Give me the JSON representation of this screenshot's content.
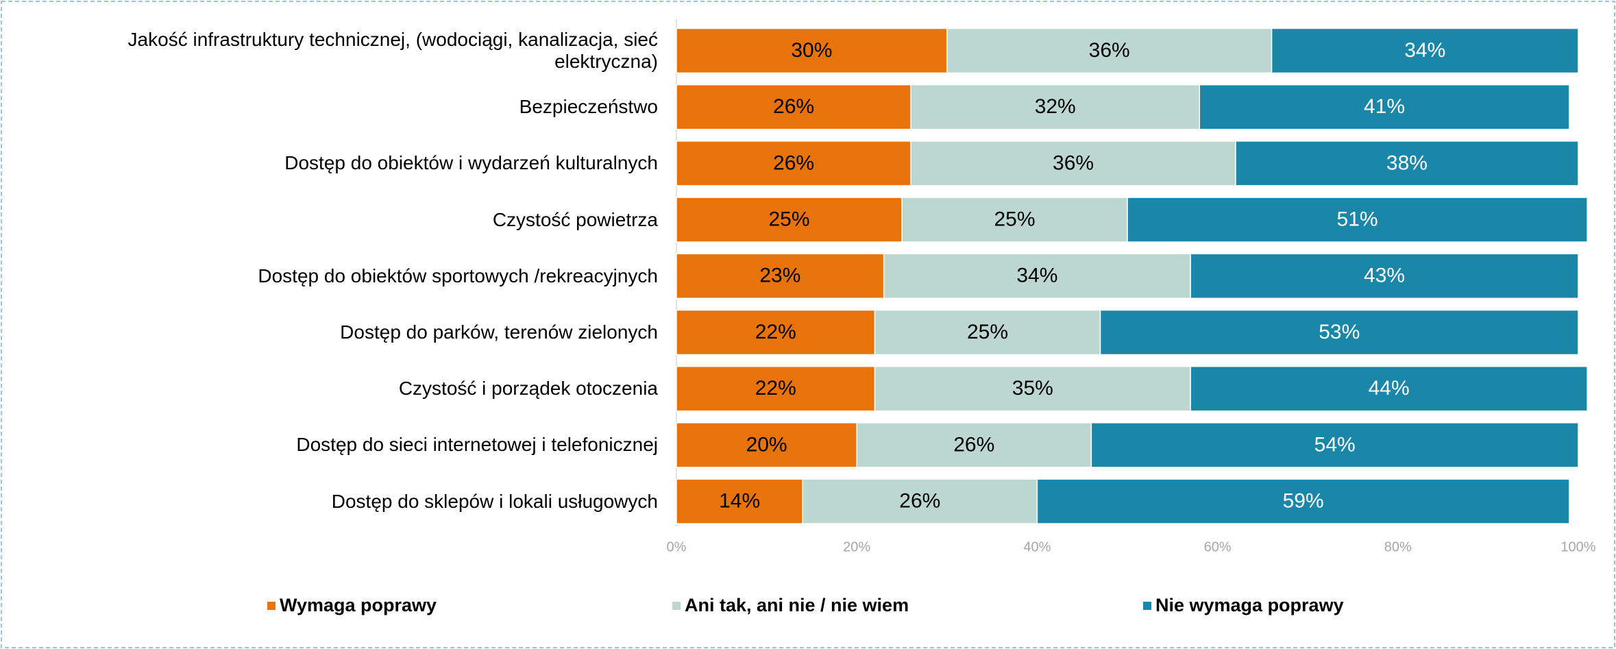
{
  "chart_data": {
    "type": "stacked_barh",
    "categories": [
      "Jakość infrastruktury technicznej, (wodociągi, kanalizacja, sieć elektryczna)",
      "Bezpieczeństwo",
      "Dostęp do obiektów i wydarzeń kulturalnych",
      "Czystość powietrza",
      "Dostęp do obiektów sportowych /rekreacyjnych",
      "Dostęp do parków, terenów zielonych",
      "Czystość i porządek otoczenia",
      "Dostęp do sieci internetowej i telefonicznej",
      "Dostęp do sklepów i lokali usługowych"
    ],
    "series": [
      {
        "name": "Wymaga poprawy",
        "color": "#e8730a",
        "label_color": "#000000",
        "values": [
          30,
          26,
          26,
          25,
          23,
          22,
          22,
          20,
          14
        ],
        "value_labels": [
          "30%",
          "26%",
          "26%",
          "25%",
          "23%",
          "22%",
          "22%",
          "20%",
          "14%"
        ]
      },
      {
        "name": "Ani tak, ani nie / nie wiem",
        "color": "#bcd6d0",
        "label_color": "#000000",
        "values": [
          36,
          32,
          36,
          25,
          34,
          25,
          35,
          26,
          26
        ],
        "value_labels": [
          "36%",
          "32%",
          "36%",
          "25%",
          "34%",
          "25%",
          "35%",
          "26%",
          "26%"
        ]
      },
      {
        "name": "Nie wymaga poprawy",
        "color": "#1a87a8",
        "label_color": "#ffffff",
        "values": [
          34,
          41,
          38,
          51,
          43,
          53,
          44,
          54,
          59
        ],
        "value_labels": [
          "34%",
          "41%",
          "38%",
          "51%",
          "43%",
          "53%",
          "44%",
          "54%",
          "59%"
        ]
      }
    ],
    "xlim": [
      0,
      100
    ],
    "xticks": [
      {
        "value": 0,
        "label": "0%"
      },
      {
        "value": 20,
        "label": "20%"
      },
      {
        "value": 40,
        "label": "40%"
      },
      {
        "value": 60,
        "label": "60%"
      },
      {
        "value": 80,
        "label": "80%"
      },
      {
        "value": 100,
        "label": "100%"
      }
    ],
    "legend": "bottom"
  }
}
